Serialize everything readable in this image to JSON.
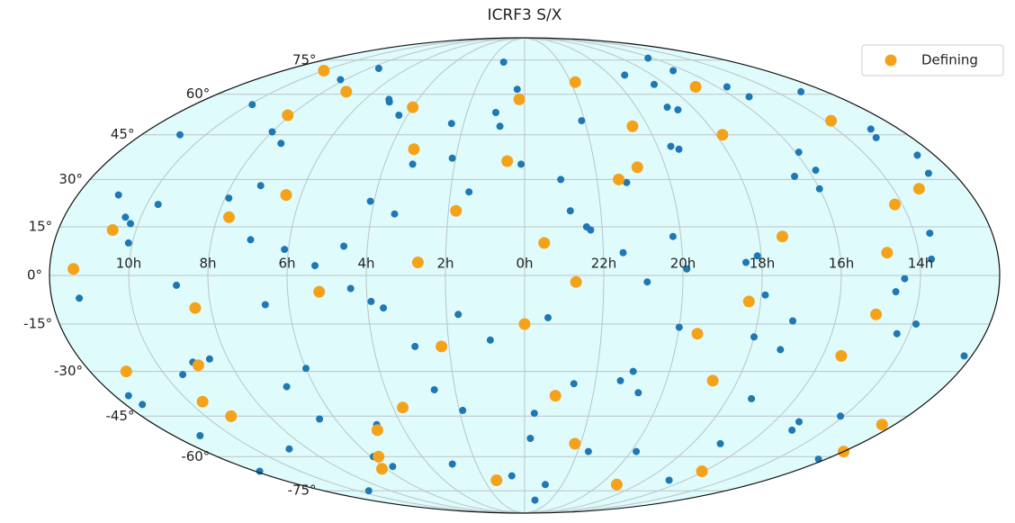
{
  "chart_data": {
    "type": "scatter",
    "projection": "mollweide",
    "title": "ICRF3 S/X",
    "xlim": [
      12,
      -12
    ],
    "ylim": [
      -90,
      90
    ],
    "xticks": [
      {
        "value": 10,
        "label": "10h"
      },
      {
        "value": 8,
        "label": "8h"
      },
      {
        "value": 6,
        "label": "6h"
      },
      {
        "value": 4,
        "label": "4h"
      },
      {
        "value": 2,
        "label": "2h"
      },
      {
        "value": 0,
        "label": "0h"
      },
      {
        "value": 22,
        "label": "22h"
      },
      {
        "value": 20,
        "label": "20h"
      },
      {
        "value": 18,
        "label": "18h"
      },
      {
        "value": 16,
        "label": "16h"
      },
      {
        "value": 14,
        "label": "14h"
      }
    ],
    "yticks": [
      {
        "value": -75,
        "label": "-75°"
      },
      {
        "value": -60,
        "label": "-60°"
      },
      {
        "value": -45,
        "label": "-45°"
      },
      {
        "value": -30,
        "label": "-30°"
      },
      {
        "value": -15,
        "label": "-15°"
      },
      {
        "value": 0,
        "label": "0°"
      },
      {
        "value": 15,
        "label": "15°"
      },
      {
        "value": 30,
        "label": "30°"
      },
      {
        "value": 45,
        "label": "45°"
      },
      {
        "value": 60,
        "label": "60°"
      },
      {
        "value": 75,
        "label": "75°"
      }
    ],
    "grid": true,
    "background": "#e0fbfc",
    "legend": "upper right",
    "series": [
      {
        "color": "#1f77b4",
        "x": [
          0.3,
          1.7,
          3.2,
          4.8,
          6.1,
          7.5,
          9.0,
          10.4,
          11.8,
          13.1,
          14.6,
          16.0,
          17.3,
          18.9,
          20.2,
          21.6,
          23.0,
          0.9,
          2.4,
          3.9,
          5.3,
          6.8,
          8.2,
          9.7,
          11.1,
          12.5,
          13.9,
          15.4,
          16.8,
          18.1,
          19.6,
          21.0,
          22.4,
          23.7,
          1.2,
          2.9,
          4.3,
          5.9,
          7.2,
          8.8,
          10.1,
          11.5,
          12.9,
          14.3,
          15.8,
          17.0,
          18.5,
          19.9,
          21.3,
          22.8,
          0.6,
          2.1,
          3.6,
          5.0,
          6.5,
          7.9,
          9.3,
          10.8,
          12.2,
          13.6,
          15.1,
          16.5,
          17.9,
          19.3,
          20.7,
          22.1,
          23.4,
          1.5,
          3.0,
          4.6,
          6.0,
          7.4,
          8.7,
          10.2,
          11.6,
          13.0,
          14.4,
          15.9,
          17.2,
          18.6,
          20.0,
          21.5,
          22.9,
          0.1,
          1.9,
          3.4,
          5.1,
          6.6,
          8.0,
          9.5,
          10.9,
          12.3,
          13.7,
          15.2,
          16.6,
          18.0,
          19.4,
          20.9,
          22.3,
          23.8,
          0.8,
          2.6,
          4.1,
          5.6,
          7.0,
          8.5,
          9.9,
          11.3,
          12.7,
          14.1,
          15.6,
          17.1,
          18.4,
          19.8,
          21.2,
          22.6,
          23.2,
          1.0,
          4.4,
          16.3
        ],
        "values": [
          62,
          -12,
          35,
          -48,
          8,
          71,
          -27,
          18,
          -66,
          44,
          -5,
          27,
          -39,
          55,
          12,
          -58,
          30,
          -20,
          49,
          -8,
          3,
          -35,
          66,
          22,
          -52,
          38,
          -15,
          59,
          -70,
          6,
          41,
          -30,
          15,
          -44,
          74,
          -22,
          52,
          -60,
          28,
          -3,
          10,
          -41,
          47,
          -18,
          33,
          -55,
          64,
          2,
          -33,
          20,
          -68,
          37,
          -10,
          57,
          -46,
          24,
          -75,
          45,
          -25,
          13,
          -50,
          31,
          -6,
          68,
          -37,
          50,
          -13,
          26,
          -63,
          9,
          -29,
          42,
          -57,
          16,
          -38,
          61,
          -1,
          39,
          -23,
          54,
          -16,
          7,
          -72,
          35,
          -43,
          19,
          58,
          -9,
          46,
          -31,
          25,
          -61,
          5,
          -47,
          70,
          -19,
          40,
          -2,
          14,
          -53,
          48,
          -36,
          23,
          -64,
          11,
          -26,
          56,
          -7,
          32,
          -45,
          63,
          -14,
          4,
          -58,
          29,
          -34,
          -80,
          53,
          -4,
          76
        ]
      },
      {
        "name": "Defining",
        "color": "#f5a21b",
        "x": [
          0.5,
          2.2,
          4.0,
          5.7,
          7.7,
          9.6,
          11.4,
          13.3,
          15.0,
          16.9,
          18.7,
          20.5,
          22.2,
          23.5,
          1.4,
          3.3,
          5.2,
          7.1,
          8.9,
          10.6,
          12.4,
          14.2,
          16.1,
          17.8,
          19.5,
          21.4,
          23.1,
          0.2,
          2.7,
          4.9,
          6.4,
          8.4,
          10.0,
          12.0,
          13.8,
          15.5,
          17.4,
          19.1,
          20.8,
          22.7,
          1.8,
          3.7,
          6.2,
          8.1,
          11.0,
          14.8,
          18.3,
          21.8,
          0.0,
          9.2
        ],
        "values": [
          36,
          -22,
          55,
          -60,
          18,
          -40,
          2,
          27,
          -12,
          63,
          -33,
          48,
          -55,
          10,
          -70,
          40,
          -5,
          61,
          -28,
          14,
          -48,
          22,
          -66,
          45,
          -18,
          30,
          -38,
          58,
          4,
          -50,
          25,
          -10,
          70,
          -58,
          50,
          -25,
          12,
          -72,
          34,
          -2,
          20,
          -42,
          -65,
          52,
          -30,
          7,
          -8,
          65,
          -15,
          -45
        ]
      }
    ]
  }
}
